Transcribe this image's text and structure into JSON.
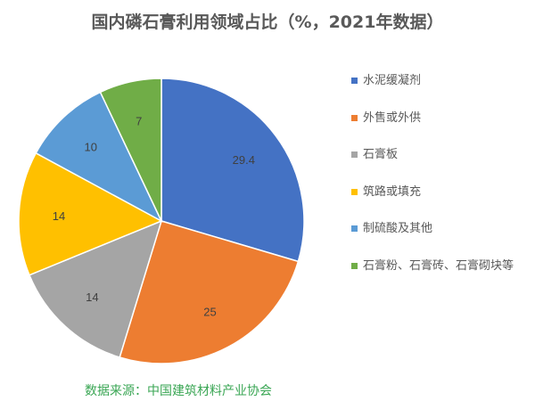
{
  "chart_data": {
    "type": "pie",
    "title": "国内磷石膏利用领域占比（%，2021年数据）",
    "categories": [
      "水泥缓凝剂",
      "外售或外供",
      "石膏板",
      "筑路或填充",
      "制硫酸及其他",
      "石膏粉、石膏砖、石膏砌块等"
    ],
    "values": [
      29.4,
      25,
      14,
      14,
      10,
      7
    ],
    "labels": [
      "29.4",
      "25",
      "14",
      "14",
      "10",
      "7"
    ],
    "colors": [
      "#4472c4",
      "#ed7d31",
      "#a5a5a5",
      "#ffc000",
      "#5b9bd5",
      "#70ad47"
    ],
    "legend_position": "right",
    "start_angle": "top, clockwise"
  },
  "source": "数据来源：中国建筑材料产业协会"
}
